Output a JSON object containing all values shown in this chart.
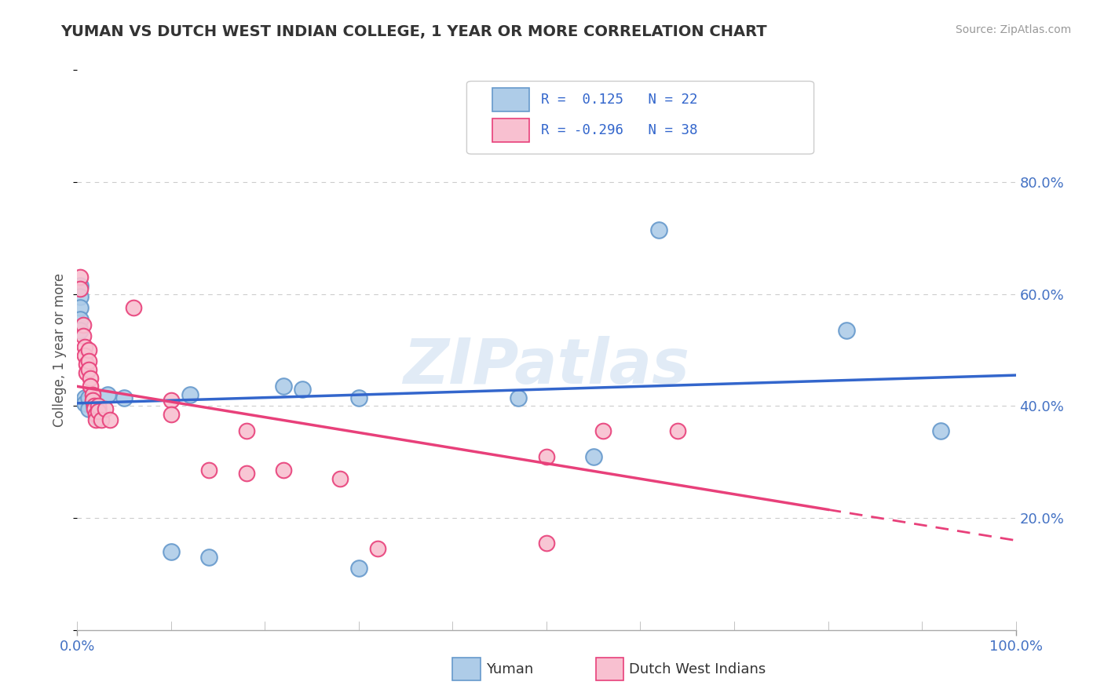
{
  "title": "YUMAN VS DUTCH WEST INDIAN COLLEGE, 1 YEAR OR MORE CORRELATION CHART",
  "source": "Source: ZipAtlas.com",
  "ylabel": "College, 1 year or more",
  "xlim": [
    0,
    1.0
  ],
  "ylim": [
    0,
    1.0
  ],
  "ytick_positions": [
    0.2,
    0.4,
    0.6,
    0.8
  ],
  "ytick_labels": [
    "20.0%",
    "40.0%",
    "60.0%",
    "80.0%"
  ],
  "watermark": "ZIPatlas",
  "blue_scatter": [
    [
      0.003,
      0.615
    ],
    [
      0.003,
      0.595
    ],
    [
      0.003,
      0.575
    ],
    [
      0.003,
      0.555
    ],
    [
      0.003,
      0.535
    ],
    [
      0.008,
      0.415
    ],
    [
      0.008,
      0.405
    ],
    [
      0.012,
      0.415
    ],
    [
      0.012,
      0.395
    ],
    [
      0.018,
      0.4
    ],
    [
      0.022,
      0.395
    ],
    [
      0.022,
      0.38
    ],
    [
      0.032,
      0.42
    ],
    [
      0.05,
      0.415
    ],
    [
      0.12,
      0.42
    ],
    [
      0.22,
      0.435
    ],
    [
      0.24,
      0.43
    ],
    [
      0.3,
      0.415
    ],
    [
      0.47,
      0.415
    ],
    [
      0.55,
      0.31
    ],
    [
      0.62,
      0.715
    ],
    [
      0.82,
      0.535
    ],
    [
      0.92,
      0.355
    ],
    [
      0.1,
      0.14
    ],
    [
      0.14,
      0.13
    ],
    [
      0.3,
      0.11
    ]
  ],
  "pink_scatter": [
    [
      0.003,
      0.63
    ],
    [
      0.003,
      0.61
    ],
    [
      0.006,
      0.545
    ],
    [
      0.006,
      0.525
    ],
    [
      0.008,
      0.505
    ],
    [
      0.008,
      0.49
    ],
    [
      0.01,
      0.475
    ],
    [
      0.01,
      0.46
    ],
    [
      0.012,
      0.5
    ],
    [
      0.012,
      0.48
    ],
    [
      0.012,
      0.465
    ],
    [
      0.014,
      0.45
    ],
    [
      0.014,
      0.435
    ],
    [
      0.016,
      0.42
    ],
    [
      0.016,
      0.41
    ],
    [
      0.018,
      0.4
    ],
    [
      0.018,
      0.395
    ],
    [
      0.02,
      0.385
    ],
    [
      0.02,
      0.375
    ],
    [
      0.022,
      0.4
    ],
    [
      0.022,
      0.39
    ],
    [
      0.026,
      0.375
    ],
    [
      0.03,
      0.395
    ],
    [
      0.035,
      0.375
    ],
    [
      0.06,
      0.575
    ],
    [
      0.1,
      0.41
    ],
    [
      0.1,
      0.385
    ],
    [
      0.14,
      0.285
    ],
    [
      0.18,
      0.28
    ],
    [
      0.18,
      0.355
    ],
    [
      0.22,
      0.285
    ],
    [
      0.28,
      0.27
    ],
    [
      0.32,
      0.145
    ],
    [
      0.5,
      0.31
    ],
    [
      0.5,
      0.155
    ],
    [
      0.56,
      0.355
    ],
    [
      0.64,
      0.355
    ]
  ],
  "blue_line": {
    "x0": 0.0,
    "y0": 0.405,
    "x1": 1.0,
    "y1": 0.455
  },
  "pink_line_solid": {
    "x0": 0.0,
    "y0": 0.435,
    "x1": 0.8,
    "y1": 0.215
  },
  "pink_line_dashed": {
    "x0": 0.8,
    "y0": 0.215,
    "x1": 1.0,
    "y1": 0.16
  },
  "blue_line_color": "#3366cc",
  "pink_line_color": "#e8407a",
  "blue_scatter_face": "#aecce8",
  "blue_scatter_edge": "#6699cc",
  "pink_scatter_face": "#f8c0d0",
  "pink_scatter_edge": "#e8407a",
  "grid_color": "#cccccc",
  "background_color": "#ffffff",
  "title_color": "#333333"
}
